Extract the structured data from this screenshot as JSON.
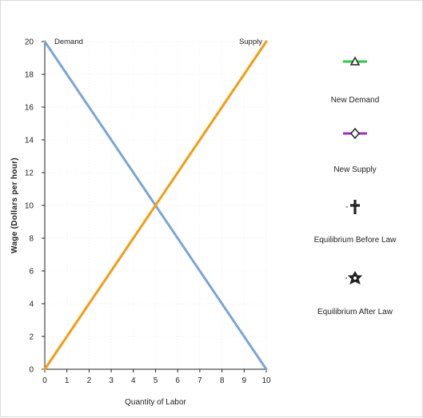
{
  "chart_data": {
    "type": "line",
    "xlabel": "Quantity of Labor",
    "ylabel": "Wage (Dollars per hour)",
    "xlim": [
      0,
      10
    ],
    "ylim": [
      0,
      20
    ],
    "x_ticks": [
      0,
      1,
      2,
      3,
      4,
      5,
      6,
      7,
      8,
      9,
      10
    ],
    "y_ticks": [
      0,
      2,
      4,
      6,
      8,
      10,
      12,
      14,
      16,
      18,
      20
    ],
    "grid": true,
    "series": [
      {
        "name": "Demand",
        "color": "#7aa6d6",
        "points": [
          [
            0,
            20
          ],
          [
            10,
            0
          ]
        ]
      },
      {
        "name": "Supply",
        "color": "#f39c12",
        "points": [
          [
            0,
            0
          ],
          [
            10,
            20
          ]
        ]
      }
    ],
    "legend": {
      "placement": "right",
      "items": [
        {
          "label": "New Demand",
          "icon": "triangle-line-icon",
          "color": "#2ecc40"
        },
        {
          "label": "New Supply",
          "icon": "diamond-line-icon",
          "color": "#9b30d0"
        },
        {
          "label": "Equilibrium Before Law",
          "icon": "dagger-cross-icon",
          "color": "#222222"
        },
        {
          "label": "Equilibrium After Law",
          "icon": "star-icon",
          "color": "#222222"
        }
      ]
    }
  }
}
